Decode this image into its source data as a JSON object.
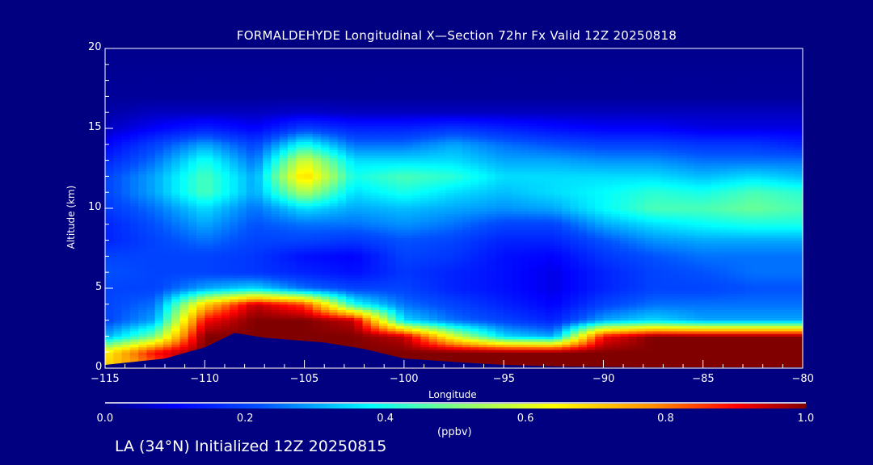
{
  "chart_data": {
    "type": "heatmap",
    "title": "FORMALDEHYDE Longitudinal X—Section 72hr  Fx Valid 12Z 20250818",
    "xlabel": "Longitude",
    "ylabel": "Altitude (km)",
    "xlim": [
      -115,
      -80
    ],
    "ylim": [
      0,
      20
    ],
    "xticks": [
      -115,
      -110,
      -105,
      -100,
      -95,
      -90,
      -85,
      -80
    ],
    "xtick_labels": [
      "−115",
      "−110",
      "−105",
      "−100",
      "−95",
      "−90",
      "−85",
      "−80"
    ],
    "yticks": [
      0,
      5,
      10,
      15,
      20
    ],
    "ytick_labels": [
      "0",
      "5",
      "10",
      "15",
      "20"
    ],
    "colorbar": {
      "label": "(ppbv)",
      "range": [
        0,
        1
      ],
      "ticks": [
        0,
        0.2,
        0.4,
        0.6,
        0.8,
        1.0
      ],
      "tick_labels": [
        "0.0",
        "0.2",
        "0.4",
        "0.6",
        "0.8",
        "1.0"
      ],
      "stops": [
        [
          0,
          "#000080"
        ],
        [
          0.1,
          "#0000ff"
        ],
        [
          0.22,
          "#0050ff"
        ],
        [
          0.38,
          "#00ffff"
        ],
        [
          0.5,
          "#80ff80"
        ],
        [
          0.64,
          "#ffff00"
        ],
        [
          0.78,
          "#ff9000"
        ],
        [
          0.9,
          "#ff0000"
        ],
        [
          1.0,
          "#800000"
        ]
      ]
    },
    "lon": [
      -115,
      -112.5,
      -110,
      -107.5,
      -105,
      -102.5,
      -100,
      -97.5,
      -95,
      -92.5,
      -90,
      -87.5,
      -85,
      -82.5,
      -80
    ],
    "alt": [
      0,
      1,
      2,
      3,
      4,
      5,
      6,
      7,
      8,
      9,
      10,
      11,
      12,
      13,
      14,
      15,
      16,
      17,
      20
    ],
    "values": [
      [
        0.7,
        0.8,
        1,
        1,
        1,
        1,
        1,
        1,
        1,
        1,
        1,
        1,
        1,
        1,
        1
      ],
      [
        0.65,
        0.9,
        1,
        1,
        1,
        1,
        1,
        1,
        1,
        1,
        1,
        1,
        1,
        1,
        1
      ],
      [
        0.3,
        0.5,
        1,
        1,
        1,
        1,
        0.95,
        0.6,
        0.35,
        0.3,
        0.9,
        1,
        1,
        1,
        1
      ],
      [
        0.2,
        0.3,
        0.9,
        1,
        1,
        0.95,
        0.35,
        0.25,
        0.2,
        0.15,
        0.3,
        0.35,
        0.3,
        0.3,
        0.3
      ],
      [
        0.2,
        0.25,
        0.7,
        0.95,
        0.85,
        0.4,
        0.25,
        0.2,
        0.15,
        0.1,
        0.2,
        0.25,
        0.25,
        0.25,
        0.25
      ],
      [
        0.2,
        0.2,
        0.3,
        0.35,
        0.25,
        0.2,
        0.2,
        0.15,
        0.12,
        0.08,
        0.15,
        0.2,
        0.2,
        0.22,
        0.22
      ],
      [
        0.22,
        0.2,
        0.2,
        0.18,
        0.15,
        0.12,
        0.18,
        0.15,
        0.12,
        0.08,
        0.15,
        0.2,
        0.22,
        0.25,
        0.25
      ],
      [
        0.2,
        0.2,
        0.2,
        0.18,
        0.12,
        0.1,
        0.2,
        0.18,
        0.12,
        0.1,
        0.18,
        0.22,
        0.25,
        0.25,
        0.25
      ],
      [
        0.15,
        0.2,
        0.25,
        0.2,
        0.2,
        0.18,
        0.22,
        0.2,
        0.15,
        0.15,
        0.22,
        0.28,
        0.3,
        0.3,
        0.3
      ],
      [
        0.15,
        0.22,
        0.3,
        0.22,
        0.25,
        0.25,
        0.28,
        0.25,
        0.2,
        0.2,
        0.3,
        0.35,
        0.38,
        0.4,
        0.4
      ],
      [
        0.18,
        0.25,
        0.35,
        0.25,
        0.35,
        0.3,
        0.32,
        0.3,
        0.28,
        0.3,
        0.38,
        0.45,
        0.45,
        0.48,
        0.45
      ],
      [
        0.2,
        0.3,
        0.45,
        0.3,
        0.55,
        0.35,
        0.4,
        0.35,
        0.32,
        0.35,
        0.38,
        0.42,
        0.4,
        0.45,
        0.42
      ],
      [
        0.2,
        0.3,
        0.45,
        0.3,
        0.7,
        0.4,
        0.45,
        0.42,
        0.35,
        0.35,
        0.35,
        0.35,
        0.32,
        0.35,
        0.32
      ],
      [
        0.15,
        0.25,
        0.4,
        0.25,
        0.6,
        0.35,
        0.35,
        0.35,
        0.3,
        0.3,
        0.28,
        0.28,
        0.25,
        0.25,
        0.25
      ],
      [
        0.1,
        0.2,
        0.3,
        0.2,
        0.4,
        0.25,
        0.25,
        0.3,
        0.25,
        0.22,
        0.2,
        0.2,
        0.18,
        0.18,
        0.15
      ],
      [
        0.05,
        0.1,
        0.15,
        0.1,
        0.2,
        0.15,
        0.15,
        0.18,
        0.15,
        0.12,
        0.1,
        0.1,
        0.08,
        0.08,
        0.08
      ],
      [
        0.03,
        0.05,
        0.05,
        0.05,
        0.06,
        0.05,
        0.05,
        0.05,
        0.05,
        0.05,
        0.05,
        0.05,
        0.05,
        0.05,
        0.05
      ],
      [
        0.02,
        0.02,
        0.02,
        0.02,
        0.02,
        0.02,
        0.02,
        0.02,
        0.02,
        0.02,
        0.02,
        0.02,
        0.02,
        0.02,
        0.02
      ],
      [
        0.01,
        0.01,
        0.01,
        0.01,
        0.01,
        0.01,
        0.01,
        0.01,
        0.01,
        0.01,
        0.01,
        0.01,
        0.01,
        0.01,
        0.01
      ]
    ],
    "terrain": [
      [
        -115,
        0.2
      ],
      [
        -112,
        0.6
      ],
      [
        -110,
        1.3
      ],
      [
        -108.5,
        2.2
      ],
      [
        -107,
        1.9
      ],
      [
        -104,
        1.6
      ],
      [
        -102,
        1.2
      ],
      [
        -100,
        0.6
      ],
      [
        -97,
        0.35
      ],
      [
        -95,
        0.2
      ],
      [
        -92,
        0.1
      ],
      [
        -88,
        0.05
      ],
      [
        -80,
        0.05
      ]
    ]
  },
  "footer": "LA (34°N) Initialized 12Z 20250815"
}
